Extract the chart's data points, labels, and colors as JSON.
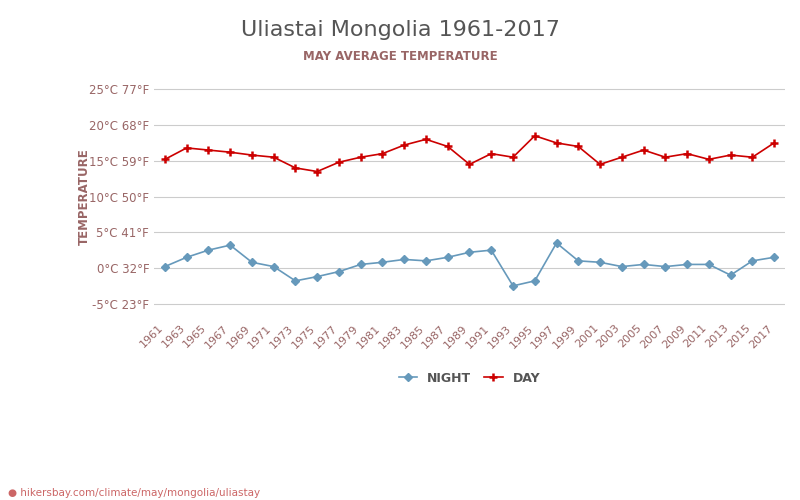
{
  "title": "Uliastai Mongolia 1961-2017",
  "subtitle": "MAY AVERAGE TEMPERATURE",
  "xlabel_url": "● hikersbay.com/climate/may/mongolia/uliastay",
  "ylabel": "TEMPERATURE",
  "years": [
    1961,
    1963,
    1965,
    1967,
    1969,
    1971,
    1973,
    1975,
    1977,
    1979,
    1981,
    1983,
    1985,
    1987,
    1989,
    1991,
    1993,
    1995,
    1997,
    1999,
    2001,
    2003,
    2005,
    2007,
    2009,
    2011,
    2013,
    2015,
    2017
  ],
  "day_temps": [
    15.2,
    16.8,
    16.5,
    16.2,
    15.8,
    15.5,
    14.0,
    13.5,
    14.8,
    15.5,
    16.0,
    17.2,
    18.0,
    17.0,
    14.5,
    16.0,
    15.5,
    18.5,
    17.5,
    17.0,
    14.5,
    15.5,
    16.5,
    15.5,
    16.0,
    15.2,
    15.8,
    15.5,
    17.5
  ],
  "night_temps": [
    0.2,
    1.5,
    2.5,
    3.2,
    0.8,
    0.2,
    -1.8,
    -1.2,
    -0.5,
    0.5,
    0.8,
    1.2,
    1.0,
    1.5,
    2.2,
    2.5,
    -2.5,
    -1.8,
    3.5,
    1.0,
    0.8,
    0.2,
    0.5,
    0.2,
    0.5,
    0.5,
    -1.0,
    1.0,
    1.5
  ],
  "day_color": "#cc0000",
  "night_color": "#6699bb",
  "background_color": "#ffffff",
  "grid_color": "#cccccc",
  "title_color": "#555555",
  "subtitle_color": "#996666",
  "axis_label_color": "#996666",
  "tick_label_color": "#996666",
  "url_color": "#cc6666",
  "yticks_c": [
    -5,
    0,
    5,
    10,
    15,
    20,
    25
  ],
  "yticks_f": [
    23,
    32,
    41,
    50,
    59,
    68,
    77
  ],
  "ylim": [
    -7,
    27
  ],
  "legend_night": "NIGHT",
  "legend_day": "DAY"
}
